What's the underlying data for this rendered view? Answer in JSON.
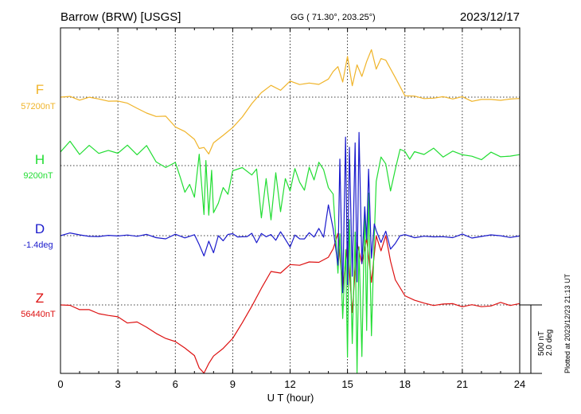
{
  "chart_data": {
    "type": "line",
    "title": "Barrow (BRW)  [USGS]",
    "coords": "GG ( 71.30°, 203.25°)",
    "date": "2023/12/17",
    "footer": "Plotted at 2023/12/23 21:13 UT",
    "xlabel": "U T (hour)",
    "xlim": [
      0,
      24
    ],
    "xticks": [
      0,
      3,
      6,
      9,
      12,
      15,
      18,
      21,
      24
    ],
    "grid": true,
    "scale_bar": {
      "line1": "500 nT",
      "line2": "2.0 deg"
    },
    "series": [
      {
        "name": "F",
        "baseline_label": "57200nT",
        "color": "#f0b429",
        "x": [
          0,
          0.5,
          1,
          1.5,
          2,
          2.5,
          3,
          3.5,
          4,
          4.5,
          5,
          5.5,
          6,
          6.5,
          7,
          7.25,
          7.5,
          7.75,
          8,
          8.5,
          9,
          9.5,
          10,
          10.5,
          11,
          11.5,
          12,
          12.5,
          13,
          13.5,
          14,
          14.25,
          14.5,
          14.75,
          15,
          15.25,
          15.5,
          15.75,
          16,
          16.25,
          16.5,
          16.75,
          17,
          17.5,
          18,
          18.5,
          19,
          19.5,
          20,
          20.5,
          21,
          21.5,
          22,
          22.5,
          23,
          23.5,
          24
        ],
        "y": [
          57200,
          57190,
          57180,
          57195,
          57185,
          57175,
          57160,
          57150,
          57120,
          57100,
          57070,
          57050,
          57000,
          56960,
          56890,
          56840,
          56830,
          56790,
          56860,
          56930,
          56980,
          57060,
          57150,
          57220,
          57280,
          57250,
          57300,
          57280,
          57300,
          57310,
          57340,
          57380,
          57420,
          57300,
          57500,
          57300,
          57450,
          57350,
          57470,
          57550,
          57420,
          57480,
          57460,
          57350,
          57220,
          57200,
          57190,
          57180,
          57190,
          57180,
          57190,
          57180,
          57185,
          57180,
          57190,
          57185,
          57190
        ]
      },
      {
        "name": "H",
        "baseline_label": "9200nT",
        "color": "#22dd33",
        "x": [
          0,
          0.5,
          1,
          1.5,
          2,
          2.5,
          3,
          3.5,
          4,
          4.5,
          5,
          5.5,
          6,
          6.25,
          6.5,
          6.75,
          7,
          7.25,
          7.5,
          7.6,
          7.75,
          7.9,
          8,
          8.25,
          8.5,
          8.75,
          9,
          9.5,
          10,
          10.25,
          10.5,
          10.75,
          11,
          11.25,
          11.5,
          11.75,
          12,
          12.25,
          12.5,
          12.75,
          13,
          13.25,
          13.5,
          13.75,
          14,
          14.25,
          14.5,
          14.6,
          14.75,
          14.9,
          15,
          15.1,
          15.25,
          15.4,
          15.5,
          15.6,
          15.75,
          15.9,
          16,
          16.1,
          16.25,
          16.4,
          16.5,
          16.75,
          17,
          17.25,
          17.5,
          17.75,
          18,
          18.25,
          18.5,
          19,
          19.5,
          20,
          20.5,
          21,
          21.5,
          22,
          22.5,
          23,
          23.5,
          24
        ],
        "y": [
          9300,
          9380,
          9280,
          9340,
          9300,
          9320,
          9290,
          9350,
          9280,
          9330,
          9230,
          9190,
          9220,
          9130,
          9000,
          9060,
          8960,
          9300,
          8850,
          9250,
          8850,
          9150,
          8860,
          8940,
          9030,
          9000,
          9150,
          9200,
          9120,
          9170,
          8820,
          9100,
          8800,
          9150,
          8850,
          9110,
          9030,
          9170,
          9070,
          9030,
          9200,
          9100,
          9210,
          9170,
          9050,
          9000,
          8400,
          8700,
          8100,
          8600,
          7800,
          8800,
          7900,
          8700,
          7700,
          8600,
          7800,
          8900,
          8000,
          9000,
          7950,
          8700,
          9100,
          9250,
          9220,
          9000,
          9190,
          9320,
          9300,
          9250,
          9300,
          9280,
          9310,
          9270,
          9300,
          9270,
          9280,
          9260,
          9290,
          9250,
          9270,
          9280
        ]
      },
      {
        "name": "D",
        "baseline_label": "-1.4deg",
        "color": "#1a1acc",
        "x": [
          0,
          0.5,
          1,
          1.5,
          2,
          2.5,
          3,
          3.5,
          4,
          4.5,
          5,
          5.5,
          6,
          6.5,
          7,
          7.25,
          7.5,
          7.75,
          8,
          8.25,
          8.5,
          8.75,
          9,
          9.25,
          9.5,
          9.75,
          10,
          10.25,
          10.5,
          10.75,
          11,
          11.25,
          11.5,
          11.75,
          12,
          12.25,
          12.5,
          12.75,
          13,
          13.25,
          13.5,
          13.75,
          14,
          14.25,
          14.5,
          14.6,
          14.75,
          14.9,
          15,
          15.1,
          15.25,
          15.4,
          15.5,
          15.6,
          15.75,
          15.9,
          16,
          16.1,
          16.25,
          16.4,
          16.5,
          16.75,
          17,
          17.25,
          17.5,
          17.75,
          18,
          18.25,
          18.5,
          19,
          19.5,
          20,
          20.5,
          21,
          21.5,
          22,
          22.5,
          23,
          23.5,
          24
        ],
        "y": [
          -1.4,
          -1.34,
          -1.4,
          -1.36,
          -1.42,
          -1.38,
          -1.4,
          -1.37,
          -1.41,
          -1.38,
          -1.4,
          -1.45,
          -1.4,
          -1.43,
          -1.35,
          -1.6,
          -2.0,
          -1.5,
          -1.9,
          -1.4,
          -1.55,
          -1.42,
          -1.4,
          -1.45,
          -1.38,
          -1.42,
          -1.38,
          -1.6,
          -1.3,
          -1.5,
          -1.35,
          -1.6,
          -1.3,
          -1.55,
          -1.7,
          -1.35,
          -1.45,
          -1.5,
          -1.32,
          -1.45,
          -1.2,
          -1.5,
          -0.5,
          -1.2,
          -2.2,
          0.8,
          -3.0,
          1.5,
          -2.8,
          1.2,
          -2.6,
          1.3,
          -2.8,
          1.6,
          -2.2,
          -0.5,
          -1.5,
          0.5,
          -2.0,
          -1.0,
          -1.2,
          -1.6,
          -1.3,
          -1.75,
          -1.6,
          -1.4,
          -1.4,
          -1.38,
          -1.42,
          -1.4,
          -1.41,
          -1.39,
          -1.4,
          -1.38,
          -1.41,
          -1.4,
          -1.42,
          -1.39,
          -1.4,
          -1.41
        ]
      },
      {
        "name": "Z",
        "baseline_label": "56440nT",
        "color": "#dd1111",
        "x": [
          0,
          0.5,
          1,
          1.5,
          2,
          2.5,
          3,
          3.5,
          4,
          4.5,
          5,
          5.5,
          6,
          6.5,
          7,
          7.25,
          7.5,
          7.75,
          8,
          8.5,
          9,
          9.5,
          10,
          10.5,
          11,
          11.5,
          12,
          12.5,
          13,
          13.5,
          14,
          14.25,
          14.5,
          14.75,
          15,
          15.25,
          15.5,
          15.75,
          16,
          16.25,
          16.5,
          16.75,
          17,
          17.25,
          17.5,
          18,
          18.5,
          19,
          19.5,
          20,
          20.5,
          21,
          21.5,
          22,
          22.5,
          23,
          23.5,
          24
        ],
        "y": [
          56440,
          56430,
          56420,
          56410,
          56390,
          56370,
          56340,
          56320,
          56300,
          56270,
          56240,
          56200,
          56160,
          56110,
          56060,
          55980,
          55940,
          56000,
          56050,
          56110,
          56200,
          56320,
          56420,
          56550,
          56670,
          56690,
          56720,
          56740,
          56750,
          56760,
          56800,
          56850,
          56950,
          56550,
          56900,
          56400,
          56880,
          56750,
          56920,
          56600,
          56950,
          56820,
          56930,
          56750,
          56620,
          56500,
          56470,
          56450,
          56440,
          56440,
          56450,
          56430,
          56445,
          56440,
          56440,
          56445,
          56440,
          56450
        ]
      }
    ]
  }
}
